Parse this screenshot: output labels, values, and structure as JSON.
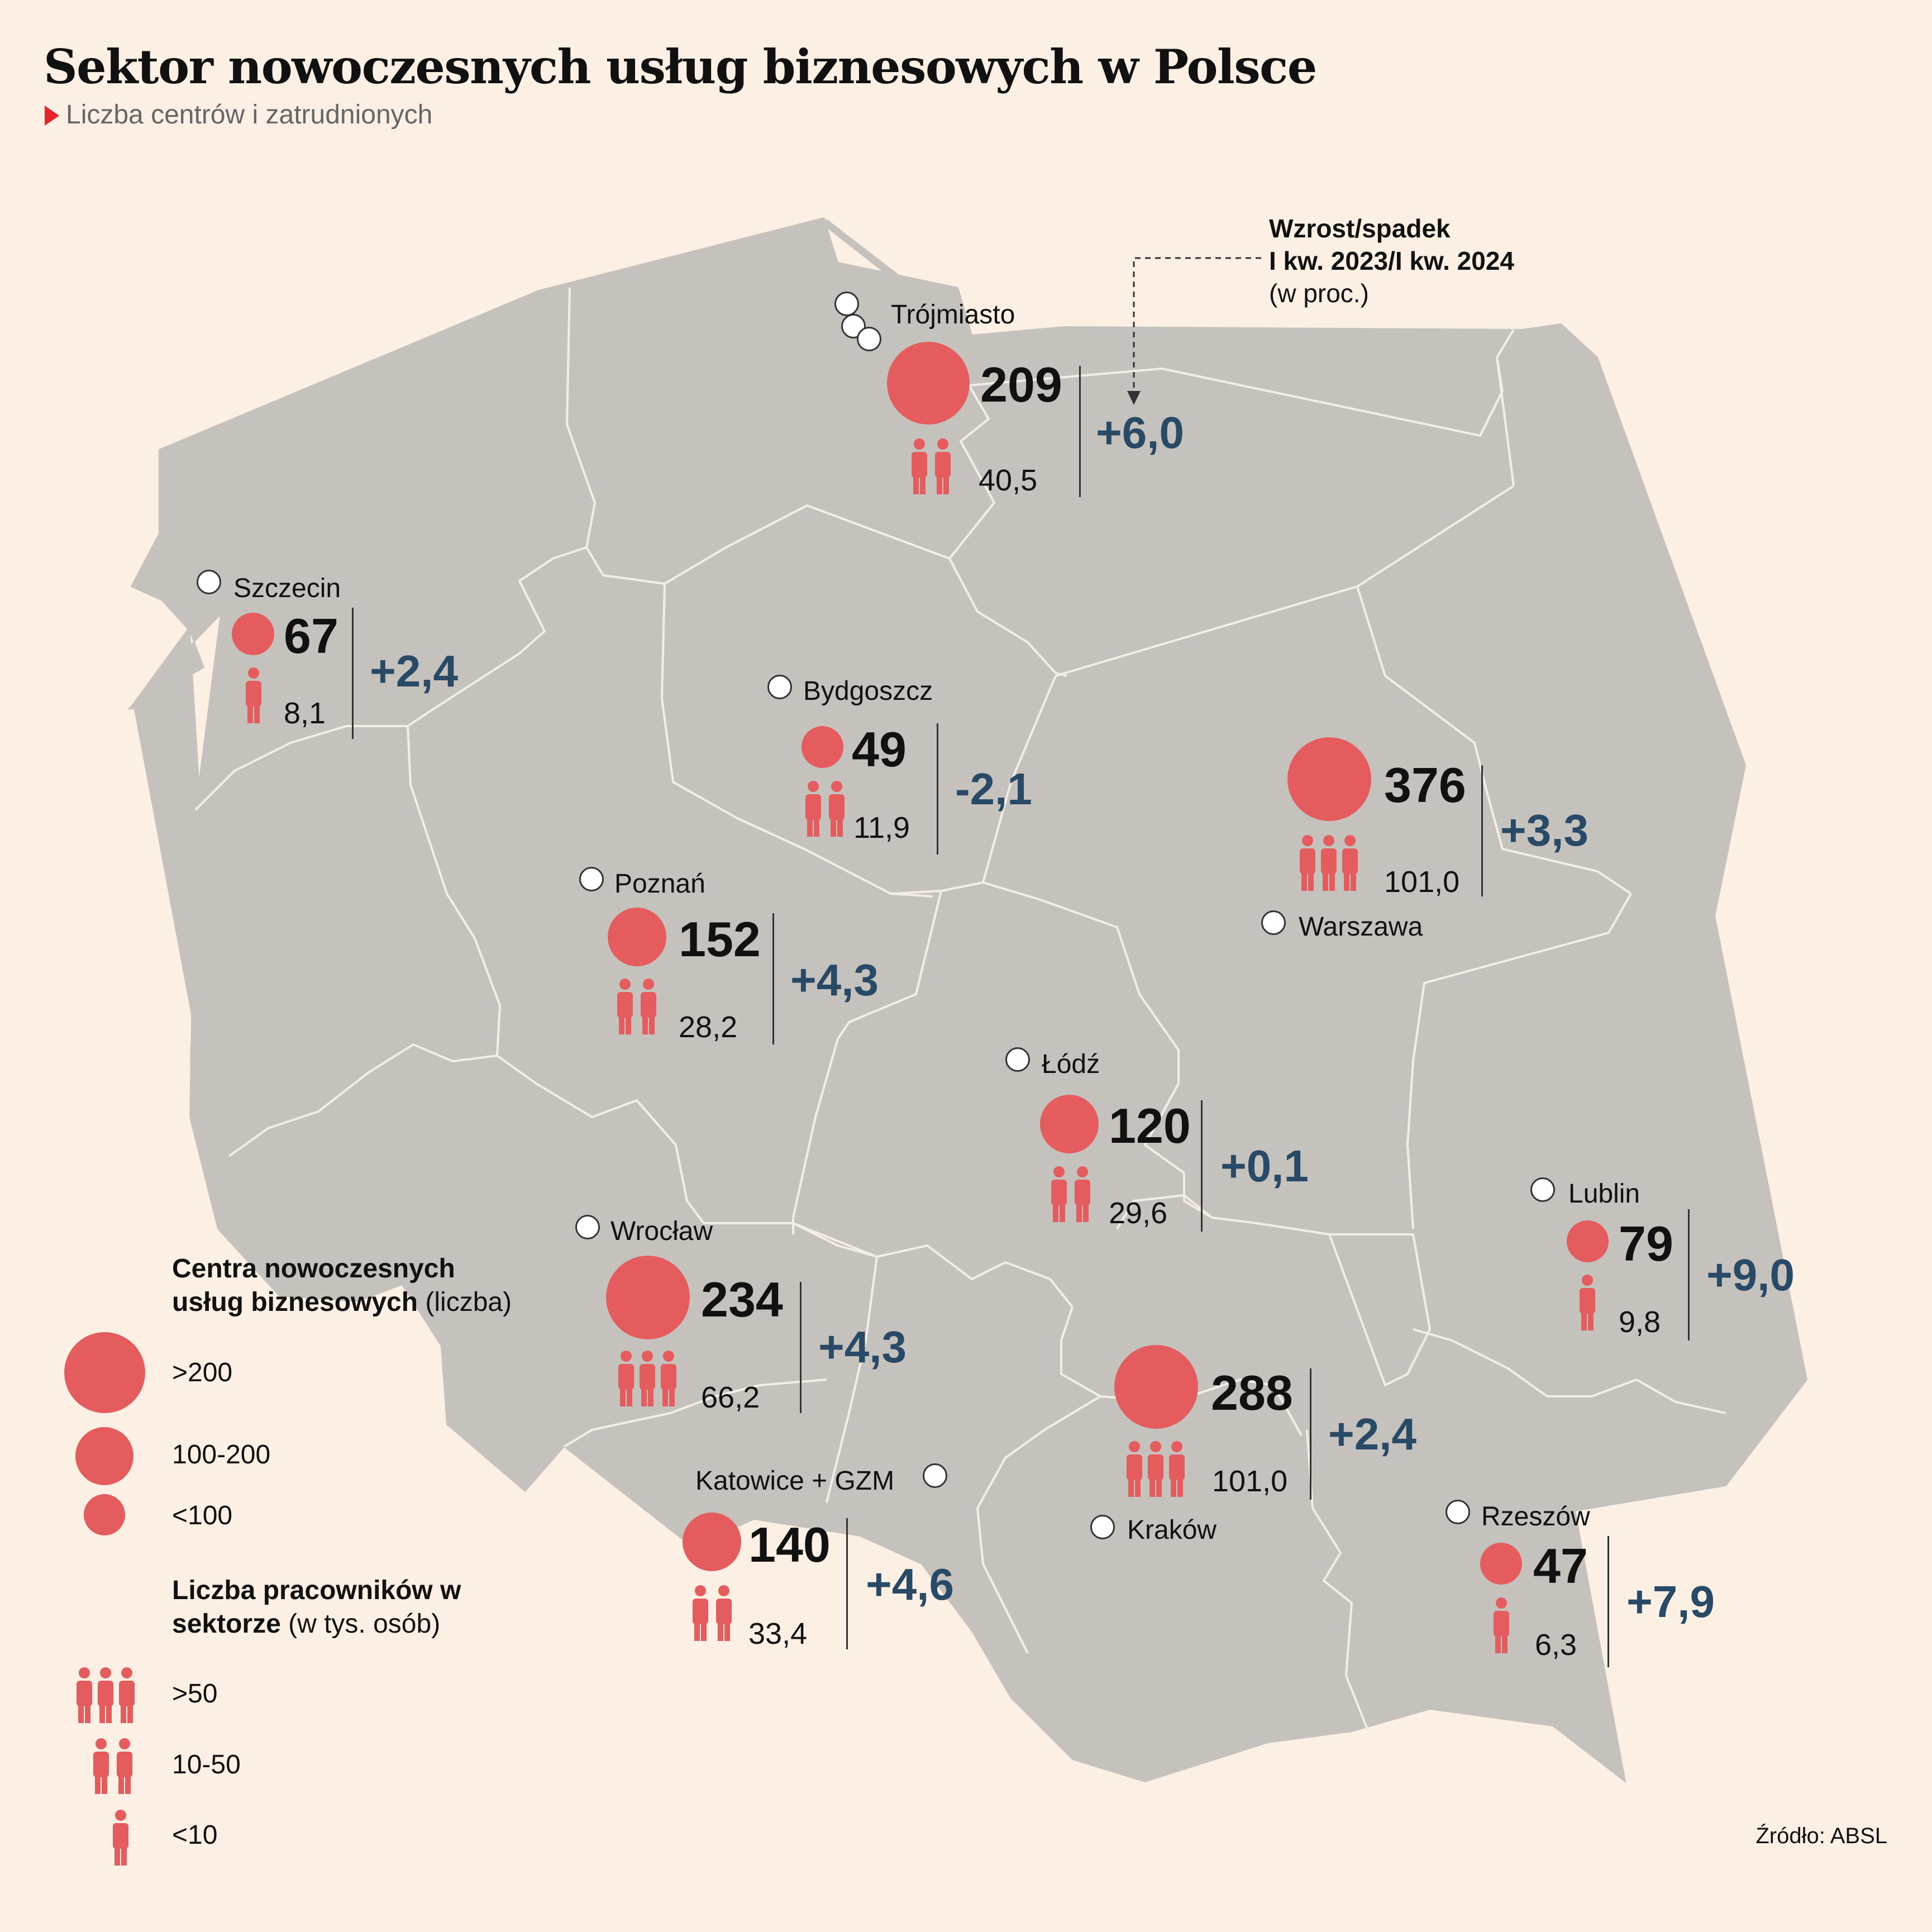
{
  "title": "Sektor nowoczesnych usług biznesowych w Polsce",
  "subtitle": "Liczba centrów i zatrudnionych",
  "note": {
    "line1": "Wzrost/spadek",
    "line2": "I kw. 2023/I kw. 2024",
    "line3": "(w proc.)"
  },
  "cities": [
    {
      "name": "Trójmiasto",
      "centers": "209",
      "employees": "40,5",
      "change": "+6,0",
      "centers_class": ">200",
      "employees_class": "10-50"
    },
    {
      "name": "Szczecin",
      "centers": "67",
      "employees": "8,1",
      "change": "+2,4",
      "centers_class": "<100",
      "employees_class": "<10"
    },
    {
      "name": "Bydgoszcz",
      "centers": "49",
      "employees": "11,9",
      "change": "-2,1",
      "centers_class": "<100",
      "employees_class": "10-50"
    },
    {
      "name": "Warszawa",
      "centers": "376",
      "employees": "101,0",
      "change": "+3,3",
      "centers_class": ">200",
      "employees_class": ">50"
    },
    {
      "name": "Poznań",
      "centers": "152",
      "employees": "28,2",
      "change": "+4,3",
      "centers_class": "100-200",
      "employees_class": "10-50"
    },
    {
      "name": "Łódź",
      "centers": "120",
      "employees": "29,6",
      "change": "+0,1",
      "centers_class": "100-200",
      "employees_class": "10-50"
    },
    {
      "name": "Lublin",
      "centers": "79",
      "employees": "9,8",
      "change": "+9,0",
      "centers_class": "<100",
      "employees_class": "<10"
    },
    {
      "name": "Wrocław",
      "centers": "234",
      "employees": "66,2",
      "change": "+4,3",
      "centers_class": ">200",
      "employees_class": ">50"
    },
    {
      "name": "Kraków",
      "centers": "288",
      "employees": "101,0",
      "change": "+2,4",
      "centers_class": ">200",
      "employees_class": ">50"
    },
    {
      "name": "Katowice + GZM",
      "centers": "140",
      "employees": "33,4",
      "change": "+4,6",
      "centers_class": "100-200",
      "employees_class": "10-50"
    },
    {
      "name": "Rzeszów",
      "centers": "47",
      "employees": "6,3",
      "change": "+7,9",
      "centers_class": "<100",
      "employees_class": "<10"
    }
  ],
  "legend": {
    "centers_title_bold": "Centra nowoczesnych usług biznesowych",
    "centers_title_rest": "(liczba)",
    "centers_items": [
      ">200",
      "100-200",
      "<100"
    ],
    "employees_title_bold": "Liczba pracowników w sektorze",
    "employees_title_rest": "(w tys. osób)",
    "employees_items": [
      ">50",
      "10-50",
      "<10"
    ]
  },
  "source": "Źródło: ABSL",
  "colors": {
    "background": "#fcefe3",
    "map": "#c5c1bc",
    "borders": "#f4ede5",
    "bubble": "#e55c5e",
    "change": "#294a66",
    "accent": "#e8242b"
  }
}
